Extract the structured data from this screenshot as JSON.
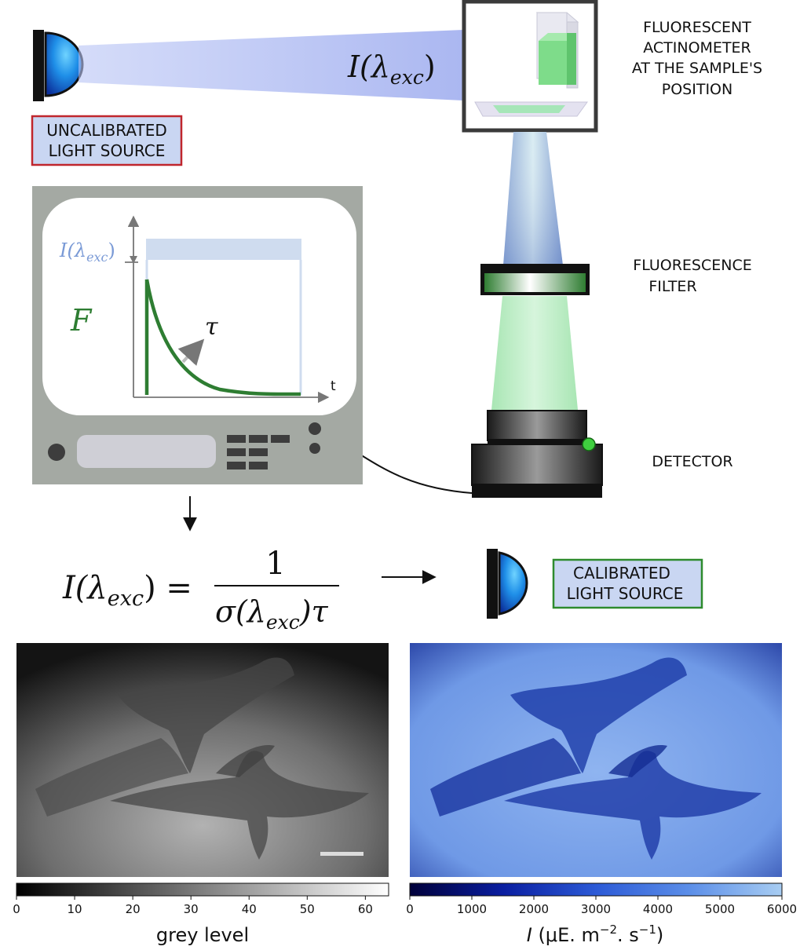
{
  "labels": {
    "uncalibrated_source": [
      "UNCALIBRATED",
      "LIGHT SOURCE"
    ],
    "actinometer": [
      "FLUORESCENT",
      "ACTINOMETER",
      "AT THE SAMPLE'S",
      "POSITION"
    ],
    "filter": [
      "FLUORESCENCE",
      "FILTER"
    ],
    "detector": "DETECTOR",
    "calibrated_source": [
      "CALIBRATED",
      "LIGHT SOURCE"
    ]
  },
  "beam_label": {
    "main": "I(λ",
    "sub": "exc",
    "close": ")"
  },
  "screen": {
    "intensity_label": {
      "main": "I(λ",
      "sub": "exc",
      "close": ")"
    },
    "fluorescence_label": "F",
    "tau_label": "τ",
    "time_label": "t"
  },
  "equation": {
    "lhs_main": "I(λ",
    "lhs_sub": "exc",
    "lhs_close": ") =",
    "numerator": "1",
    "den_main": "σ(λ",
    "den_sub": "exc",
    "den_close": ")τ"
  },
  "colorbars": [
    {
      "ticks": [
        "0",
        "10",
        "20",
        "30",
        "40",
        "50",
        "60"
      ],
      "label": "grey level",
      "gradient": [
        "#000000",
        "#ffffff"
      ]
    },
    {
      "ticks": [
        "0",
        "1000",
        "2000",
        "3000",
        "4000",
        "5000",
        "6000"
      ],
      "label_i": "I",
      "label_rest": " (μE. m",
      "label_sup1": "−2",
      "label_mid": ". s",
      "label_sup2": "−1",
      "label_close": ")",
      "gradient": [
        "#00003a",
        "#0a1ea0",
        "#2c5ad6",
        "#5b8ee8",
        "#9cc4f0"
      ]
    }
  ],
  "colors": {
    "uncalibrated_border": "#c0262d",
    "calibrated_border": "#2e8b2e",
    "label_fill": "#c9d6f2",
    "screen_case": "#a4a9a3",
    "fluorescence_green": "#2e7d32",
    "intensity_blue": "#7a9ad6"
  }
}
